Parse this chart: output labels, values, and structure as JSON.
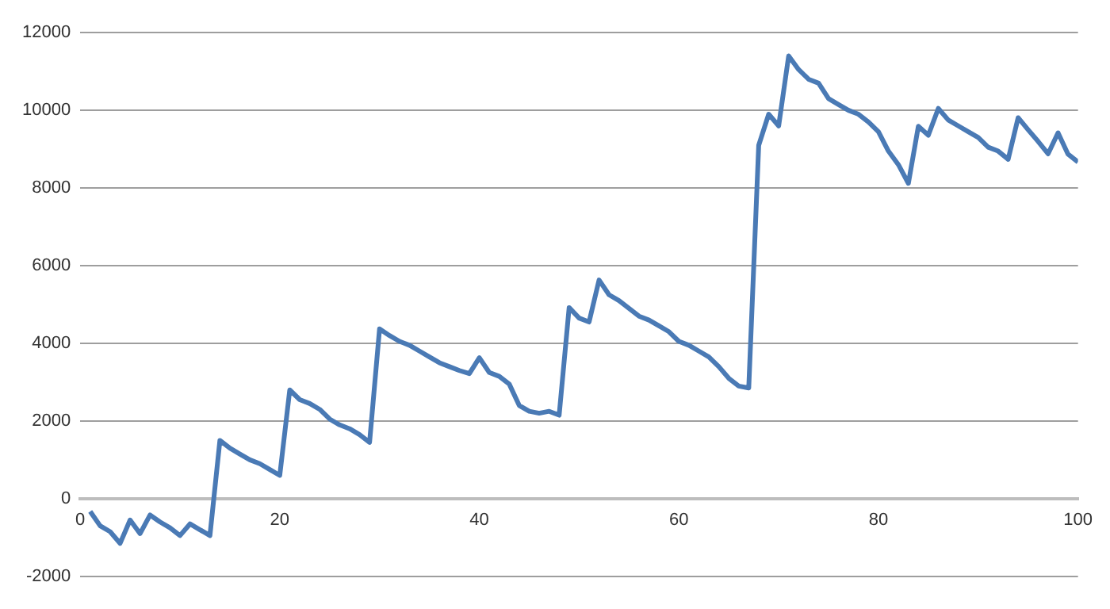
{
  "chart_data": {
    "type": "line",
    "x": [
      1,
      2,
      3,
      4,
      5,
      6,
      7,
      8,
      9,
      10,
      11,
      12,
      13,
      14,
      15,
      16,
      17,
      18,
      19,
      20,
      21,
      22,
      23,
      24,
      25,
      26,
      27,
      28,
      29,
      30,
      31,
      32,
      33,
      34,
      35,
      36,
      37,
      38,
      39,
      40,
      41,
      42,
      43,
      44,
      45,
      46,
      47,
      48,
      49,
      50,
      51,
      52,
      53,
      54,
      55,
      56,
      57,
      58,
      59,
      60,
      61,
      62,
      63,
      64,
      65,
      66,
      67,
      68,
      69,
      70,
      71,
      72,
      73,
      74,
      75,
      76,
      77,
      78,
      79,
      80,
      81,
      82,
      83,
      84,
      85,
      86,
      87,
      88,
      89,
      90,
      91,
      92,
      93,
      94,
      95,
      96,
      97,
      98,
      99,
      100
    ],
    "series": [
      {
        "color": "#4a7ab5",
        "values": [
          -330,
          -700,
          -850,
          -1150,
          -550,
          -900,
          -420,
          -600,
          -750,
          -950,
          -650,
          -800,
          -950,
          1500,
          1300,
          1150,
          1000,
          900,
          750,
          600,
          2800,
          2550,
          2450,
          2300,
          2050,
          1900,
          1800,
          1650,
          1450,
          4370,
          4200,
          4050,
          3950,
          3800,
          3650,
          3500,
          3400,
          3300,
          3220,
          3630,
          3250,
          3150,
          2950,
          2400,
          2250,
          2200,
          2250,
          2150,
          4920,
          4650,
          4550,
          5630,
          5250,
          5100,
          4900,
          4700,
          4600,
          4450,
          4300,
          4050,
          3950,
          3800,
          3650,
          3400,
          3100,
          2900,
          2850,
          9100,
          9900,
          9600,
          11400,
          11050,
          10800,
          10700,
          10300,
          10150,
          10000,
          9900,
          9700,
          9450,
          8950,
          8600,
          8120,
          9590,
          9360,
          10050,
          9750,
          9600,
          9450,
          9300,
          9050,
          8950,
          8740,
          9810,
          9500,
          9200,
          8880,
          9420,
          8870,
          8670
        ]
      }
    ],
    "xlim": [
      0,
      100
    ],
    "xticks": [
      0,
      20,
      40,
      60,
      80,
      100
    ],
    "ylim": [
      -2000,
      12000
    ],
    "yticks": [
      -2000,
      0,
      2000,
      4000,
      6000,
      8000,
      10000,
      12000
    ],
    "grid": "y",
    "marker": "none",
    "line_style": "solid",
    "legend": false
  }
}
